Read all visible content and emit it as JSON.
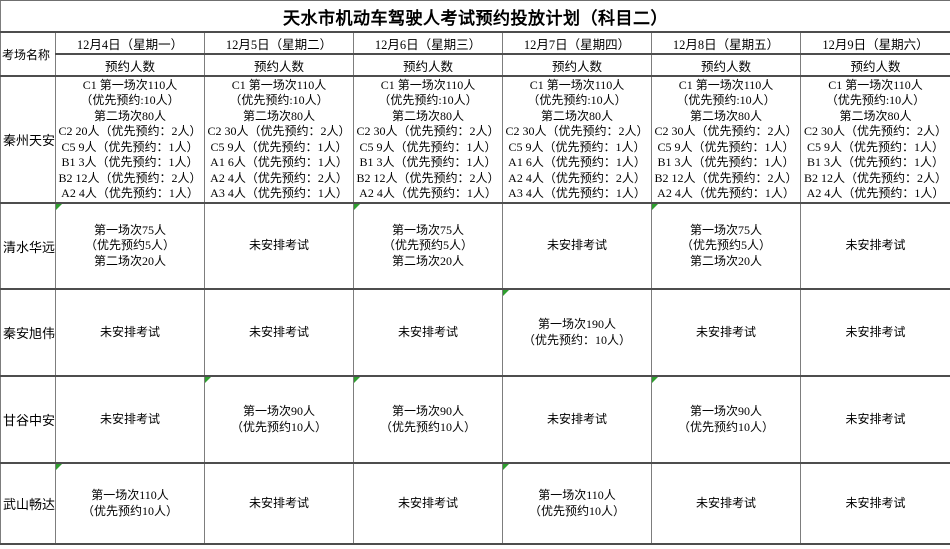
{
  "title": "天水市机动车驾驶人考试预约投放计划（科目二）",
  "corner_label": "考场名称",
  "subheader": "预约人数",
  "columns": [
    {
      "date": "12月4日（星期一）"
    },
    {
      "date": "12月5日（星期二）"
    },
    {
      "date": "12月6日（星期三）"
    },
    {
      "date": "12月7日（星期四）"
    },
    {
      "date": "12月8日（星期五）"
    },
    {
      "date": "12月9日（星期六）"
    }
  ],
  "rows": [
    {
      "name": "秦州天安",
      "cells": [
        {
          "lines": [
            "C1 第一场次110人",
            "（优先预约:10人）",
            "第二场次80人",
            "C2 20人（优先预约：2人）",
            "C5 9人（优先预约：1人）",
            "B1 3人（优先预约：1人）",
            "B2 12人（优先预约：2人）",
            "A2 4人（优先预约：1人）"
          ],
          "marker": false
        },
        {
          "lines": [
            "C1 第一场次110人",
            "（优先预约:10人）",
            "第二场次80人",
            "C2 30人（优先预约：2人）",
            "C5 9人（优先预约：1人）",
            "A1 6人（优先预约：1人）",
            "A2 4人（优先预约：2人）",
            "A3 4人（优先预约：1人）"
          ],
          "marker": false
        },
        {
          "lines": [
            "C1 第一场次110人",
            "（优先预约:10人）",
            "第二场次80人",
            "C2 30人（优先预约：2人）",
            "C5 9人（优先预约：1人）",
            "B1 3人（优先预约：1人）",
            "B2 12人（优先预约：2人）",
            "A2 4人（优先预约：1人）"
          ],
          "marker": false
        },
        {
          "lines": [
            "C1 第一场次110人",
            "（优先预约:10人）",
            "第二场次80人",
            "C2 30人（优先预约：2人）",
            "C5 9人（优先预约：1人）",
            "A1 6人（优先预约：1人）",
            "A2 4人（优先预约：2人）",
            "A3 4人（优先预约：1人）"
          ],
          "marker": false
        },
        {
          "lines": [
            "C1 第一场次110人",
            "（优先预约:10人）",
            "第二场次80人",
            "C2 30人（优先预约：2人）",
            "C5 9人（优先预约：1人）",
            "B1 3人（优先预约：1人）",
            "B2 12人（优先预约：2人）",
            "A2 4人（优先预约：1人）"
          ],
          "marker": false
        },
        {
          "lines": [
            "C1 第一场次110人",
            "（优先预约:10人）",
            "第二场次80人",
            "C2 30人（优先预约：2人）",
            "C5 9人（优先预约：1人）",
            "B1 3人（优先预约：1人）",
            "B2 12人（优先预约：2人）",
            "A2 4人（优先预约：1人）"
          ],
          "marker": false
        }
      ]
    },
    {
      "name": "清水华远",
      "cells": [
        {
          "lines": [
            "第一场次75人",
            "（优先预约5人）",
            "第二场次20人"
          ],
          "marker": true
        },
        {
          "lines": [
            "未安排考试"
          ],
          "marker": false
        },
        {
          "lines": [
            "第一场次75人",
            "（优先预约5人）",
            "第二场次20人"
          ],
          "marker": true
        },
        {
          "lines": [
            "未安排考试"
          ],
          "marker": false
        },
        {
          "lines": [
            "第一场次75人",
            "（优先预约5人）",
            "第二场次20人"
          ],
          "marker": true
        },
        {
          "lines": [
            "未安排考试"
          ],
          "marker": false
        }
      ]
    },
    {
      "name": "秦安旭伟",
      "cells": [
        {
          "lines": [
            "未安排考试"
          ],
          "marker": false
        },
        {
          "lines": [
            "未安排考试"
          ],
          "marker": false
        },
        {
          "lines": [
            "未安排考试"
          ],
          "marker": false
        },
        {
          "lines": [
            "第一场次190人",
            "（优先预约：10人）"
          ],
          "marker": true
        },
        {
          "lines": [
            "未安排考试"
          ],
          "marker": false
        },
        {
          "lines": [
            "未安排考试"
          ],
          "marker": false
        }
      ]
    },
    {
      "name": "甘谷中安",
      "cells": [
        {
          "lines": [
            "未安排考试"
          ],
          "marker": false
        },
        {
          "lines": [
            "第一场次90人",
            "（优先预约10人）"
          ],
          "marker": true
        },
        {
          "lines": [
            "第一场次90人",
            "（优先预约10人）"
          ],
          "marker": true
        },
        {
          "lines": [
            "未安排考试"
          ],
          "marker": false
        },
        {
          "lines": [
            "第一场次90人",
            "（优先预约10人）"
          ],
          "marker": true
        },
        {
          "lines": [
            "未安排考试"
          ],
          "marker": false
        }
      ]
    },
    {
      "name": "武山畅达",
      "cells": [
        {
          "lines": [
            "第一场次110人",
            "（优先预约10人）"
          ],
          "marker": true
        },
        {
          "lines": [
            "未安排考试"
          ],
          "marker": false
        },
        {
          "lines": [
            "未安排考试"
          ],
          "marker": false
        },
        {
          "lines": [
            "第一场次110人",
            "（优先预约10人）"
          ],
          "marker": true
        },
        {
          "lines": [
            "未安排考试"
          ],
          "marker": false
        },
        {
          "lines": [
            "未安排考试"
          ],
          "marker": false
        }
      ]
    }
  ],
  "colors": {
    "grid_horizontal": "#4d4d4d",
    "grid_vertical": "#7d7d7d",
    "marker_green": "#2e9e2e",
    "background": "#ffffff",
    "text": "#000000"
  }
}
